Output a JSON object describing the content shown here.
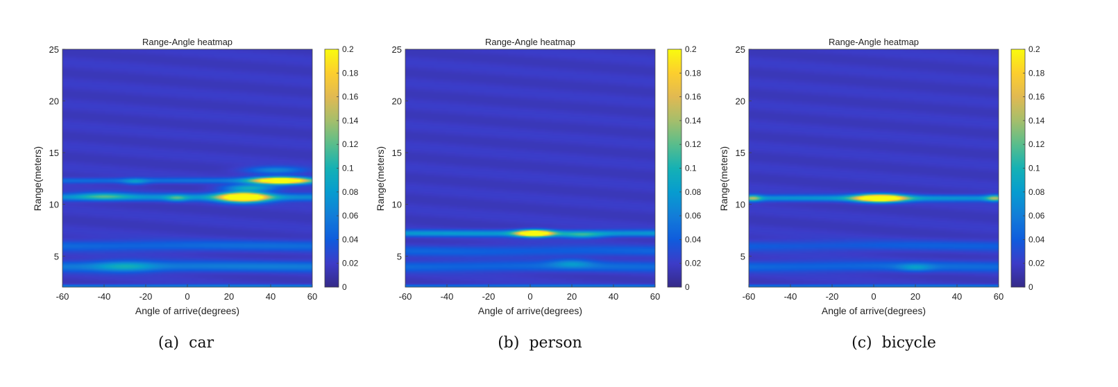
{
  "chart_data": [
    {
      "type": "heatmap",
      "title": "Range-Angle heatmap",
      "xlabel": "Angle of arrive(degrees)",
      "ylabel": "Range(meters)",
      "xlim": [
        -60,
        60
      ],
      "ylim": [
        2,
        25
      ],
      "xticks": [
        "-60",
        "-40",
        "-20",
        "0",
        "20",
        "40",
        "60"
      ],
      "yticks": [
        "5",
        "10",
        "15",
        "20",
        "25"
      ],
      "colorbar": {
        "min": 0,
        "max": 0.2,
        "colormap": "parula",
        "ticks": [
          "0",
          "0.02",
          "0.04",
          "0.06",
          "0.08",
          "0.1",
          "0.12",
          "0.14",
          "0.16",
          "0.18",
          "0.2"
        ]
      },
      "background": 0.018,
      "bands": [
        {
          "range": 10.7,
          "width": 0.35,
          "intensity": 0.055
        },
        {
          "range": 4.0,
          "width": 0.5,
          "intensity": 0.04
        },
        {
          "range": 6.0,
          "width": 0.5,
          "intensity": 0.03
        },
        {
          "range": 12.3,
          "width": 0.25,
          "intensity": 0.035
        },
        {
          "range": 2.1,
          "width": 0.15,
          "intensity": 0.045
        }
      ],
      "peaks": [
        {
          "angle": 27,
          "range": 10.7,
          "angle_spread": 11,
          "range_spread": 0.45,
          "value": 0.2
        },
        {
          "angle": 45,
          "range": 12.3,
          "angle_spread": 13,
          "range_spread": 0.32,
          "value": 0.2
        },
        {
          "angle": 30,
          "range": 11.6,
          "angle_spread": 12,
          "range_spread": 0.3,
          "value": 0.06
        },
        {
          "angle": 42,
          "range": 13.3,
          "angle_spread": 14,
          "range_spread": 0.35,
          "value": 0.04
        },
        {
          "angle": -40,
          "range": 10.8,
          "angle_spread": 12,
          "range_spread": 0.35,
          "value": 0.04
        },
        {
          "angle": -5,
          "range": 10.6,
          "angle_spread": 5,
          "range_spread": 0.3,
          "value": 0.04
        },
        {
          "angle": -30,
          "range": 4.0,
          "angle_spread": 14,
          "range_spread": 0.5,
          "value": 0.035
        },
        {
          "angle": -25,
          "range": 12.2,
          "angle_spread": 6,
          "range_spread": 0.3,
          "value": 0.03
        }
      ]
    },
    {
      "type": "heatmap",
      "title": "Range-Angle heatmap",
      "xlabel": "Angle of arrive(degrees)",
      "ylabel": "Range(meters)",
      "xlim": [
        -60,
        60
      ],
      "ylim": [
        2,
        25
      ],
      "xticks": [
        "-60",
        "-40",
        "-20",
        "0",
        "20",
        "40",
        "60"
      ],
      "yticks": [
        "5",
        "10",
        "15",
        "20",
        "25"
      ],
      "colorbar": {
        "min": 0,
        "max": 0.2,
        "colormap": "parula",
        "ticks": [
          "0",
          "0.02",
          "0.04",
          "0.06",
          "0.08",
          "0.1",
          "0.12",
          "0.14",
          "0.16",
          "0.18",
          "0.2"
        ]
      },
      "background": 0.018,
      "bands": [
        {
          "range": 7.2,
          "width": 0.3,
          "intensity": 0.06
        },
        {
          "range": 4.0,
          "width": 0.5,
          "intensity": 0.03
        },
        {
          "range": 5.5,
          "width": 0.5,
          "intensity": 0.025
        },
        {
          "range": 2.1,
          "width": 0.15,
          "intensity": 0.04
        }
      ],
      "peaks": [
        {
          "angle": 2,
          "range": 7.2,
          "angle_spread": 8,
          "range_spread": 0.3,
          "value": 0.2
        },
        {
          "angle": 25,
          "range": 7.0,
          "angle_spread": 10,
          "range_spread": 0.3,
          "value": 0.04
        },
        {
          "angle": 20,
          "range": 4.3,
          "angle_spread": 10,
          "range_spread": 0.4,
          "value": 0.03
        }
      ]
    },
    {
      "type": "heatmap",
      "title": "Range-Angle heatmap",
      "xlabel": "Angle of arrive(degrees)",
      "ylabel": "Range(meters)",
      "xlim": [
        -60,
        60
      ],
      "ylim": [
        2,
        25
      ],
      "xticks": [
        "-60",
        "-40",
        "-20",
        "0",
        "20",
        "40",
        "60"
      ],
      "yticks": [
        "5",
        "10",
        "15",
        "20",
        "25"
      ],
      "colorbar": {
        "min": 0,
        "max": 0.2,
        "colormap": "parula",
        "ticks": [
          "0",
          "0.02",
          "0.04",
          "0.06",
          "0.08",
          "0.1",
          "0.12",
          "0.14",
          "0.16",
          "0.18",
          "0.2"
        ]
      },
      "background": 0.018,
      "bands": [
        {
          "range": 10.6,
          "width": 0.3,
          "intensity": 0.06
        },
        {
          "range": 4.0,
          "width": 0.5,
          "intensity": 0.03
        },
        {
          "range": 6.0,
          "width": 0.5,
          "intensity": 0.022
        },
        {
          "range": 2.1,
          "width": 0.15,
          "intensity": 0.04
        }
      ],
      "peaks": [
        {
          "angle": 3,
          "range": 10.6,
          "angle_spread": 11,
          "range_spread": 0.35,
          "value": 0.2
        },
        {
          "angle": -58,
          "range": 10.6,
          "angle_spread": 4,
          "range_spread": 0.3,
          "value": 0.06
        },
        {
          "angle": 58,
          "range": 10.6,
          "angle_spread": 4,
          "range_spread": 0.3,
          "value": 0.06
        },
        {
          "angle": 20,
          "range": 3.9,
          "angle_spread": 8,
          "range_spread": 0.35,
          "value": 0.03
        }
      ]
    }
  ],
  "captions": [
    {
      "label": "(a)",
      "text": "car"
    },
    {
      "label": "(b)",
      "text": "person"
    },
    {
      "label": "(c)",
      "text": "bicycle"
    }
  ]
}
